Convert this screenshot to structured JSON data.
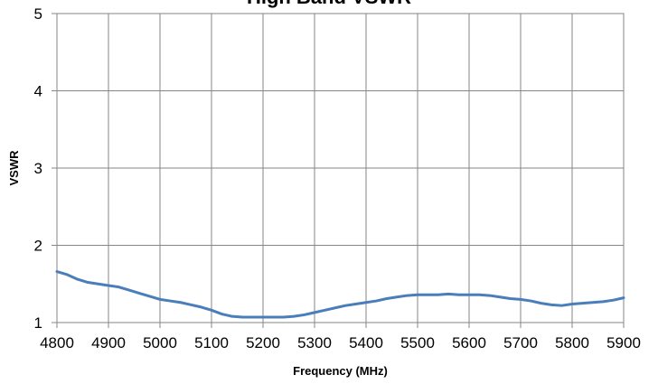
{
  "chart_data": {
    "type": "line",
    "title": "High Band VSWR",
    "xlabel": "Frequency (MHz)",
    "ylabel": "VSWR",
    "xlim": [
      4800,
      5900
    ],
    "ylim": [
      1,
      5
    ],
    "x_ticks": [
      "4800",
      "4900",
      "5000",
      "5100",
      "5200",
      "5300",
      "5400",
      "5500",
      "5600",
      "5700",
      "5800",
      "5900"
    ],
    "y_ticks": [
      "1",
      "2",
      "3",
      "4",
      "5"
    ],
    "grid": true,
    "legend": "none",
    "series": [
      {
        "color": "#4a7ebb",
        "x": [
          4800,
          4820,
          4840,
          4860,
          4880,
          4900,
          4920,
          4940,
          4960,
          4980,
          5000,
          5020,
          5040,
          5060,
          5080,
          5100,
          5120,
          5140,
          5160,
          5180,
          5200,
          5220,
          5240,
          5260,
          5280,
          5300,
          5320,
          5340,
          5360,
          5380,
          5400,
          5420,
          5440,
          5460,
          5480,
          5500,
          5520,
          5540,
          5560,
          5580,
          5600,
          5620,
          5640,
          5660,
          5680,
          5700,
          5720,
          5740,
          5760,
          5780,
          5800,
          5820,
          5840,
          5860,
          5880,
          5900
        ],
        "y": [
          1.66,
          1.62,
          1.56,
          1.52,
          1.5,
          1.48,
          1.46,
          1.42,
          1.38,
          1.34,
          1.3,
          1.28,
          1.26,
          1.23,
          1.2,
          1.16,
          1.11,
          1.08,
          1.07,
          1.07,
          1.07,
          1.07,
          1.07,
          1.08,
          1.1,
          1.13,
          1.16,
          1.19,
          1.22,
          1.24,
          1.26,
          1.28,
          1.31,
          1.33,
          1.35,
          1.36,
          1.36,
          1.36,
          1.37,
          1.36,
          1.36,
          1.36,
          1.35,
          1.33,
          1.31,
          1.3,
          1.28,
          1.25,
          1.23,
          1.22,
          1.24,
          1.25,
          1.26,
          1.27,
          1.29,
          1.32
        ]
      }
    ]
  }
}
